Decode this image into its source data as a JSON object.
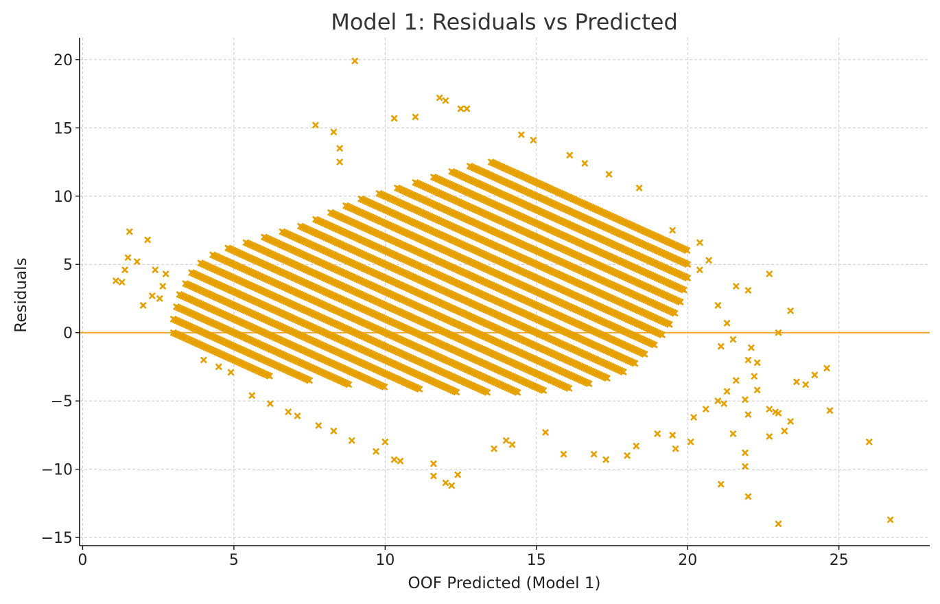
{
  "chart_data": {
    "type": "scatter",
    "title": "Model 1: Residuals vs Predicted",
    "xlabel": "OOF Predicted (Model 1)",
    "ylabel": "Residuals",
    "xlim": [
      -0.1,
      28.0
    ],
    "ylim": [
      -15.6,
      21.6
    ],
    "x_ticks": [
      0,
      5,
      10,
      15,
      20,
      25
    ],
    "x_tick_labels": [
      "0",
      "5",
      "10",
      "15",
      "20",
      "25"
    ],
    "y_ticks": [
      -15,
      -10,
      -5,
      0,
      5,
      10,
      15,
      20
    ],
    "y_tick_labels": [
      "−15",
      "−10",
      "−5",
      "0",
      "5",
      "10",
      "15",
      "20"
    ],
    "grid": true,
    "reference_line": {
      "y": 0
    },
    "marker": "x",
    "colors": {
      "points": "#E6A000",
      "reference_line": "#F0A020",
      "grid": "#c8c8c8",
      "axis": "#111111"
    },
    "bands": {
      "description": "points lie on diagonal bands of constant (predicted + residual), i.e. integer actual values",
      "actual_values": [
        3,
        4,
        5,
        6,
        7,
        8,
        9,
        10,
        11,
        12,
        13,
        14,
        15,
        16,
        17,
        18,
        19,
        20,
        21,
        22,
        23,
        24,
        25,
        26
      ],
      "band_x_ranges": [
        [
          3.0,
          6.2
        ],
        [
          3.0,
          7.5
        ],
        [
          3.1,
          8.8
        ],
        [
          3.2,
          10.0
        ],
        [
          3.4,
          11.2
        ],
        [
          3.6,
          12.4
        ],
        [
          3.9,
          13.4
        ],
        [
          4.3,
          14.4
        ],
        [
          4.8,
          15.3
        ],
        [
          5.4,
          16.1
        ],
        [
          6.0,
          16.8
        ],
        [
          6.6,
          17.4
        ],
        [
          7.2,
          17.9
        ],
        [
          7.7,
          18.3
        ],
        [
          8.2,
          18.6
        ],
        [
          8.7,
          18.9
        ],
        [
          9.2,
          19.2
        ],
        [
          9.8,
          19.4
        ],
        [
          10.4,
          19.6
        ],
        [
          11.0,
          19.8
        ],
        [
          11.6,
          19.9
        ],
        [
          12.2,
          20.0
        ],
        [
          12.8,
          20.0
        ],
        [
          13.5,
          20.0
        ]
      ]
    },
    "outliers": [
      {
        "x": 1.1,
        "y": 3.8
      },
      {
        "x": 1.3,
        "y": 3.7
      },
      {
        "x": 1.4,
        "y": 4.6
      },
      {
        "x": 1.5,
        "y": 5.5
      },
      {
        "x": 1.55,
        "y": 7.4
      },
      {
        "x": 1.8,
        "y": 5.2
      },
      {
        "x": 2.0,
        "y": 2.0
      },
      {
        "x": 2.15,
        "y": 6.8
      },
      {
        "x": 2.3,
        "y": 2.7
      },
      {
        "x": 2.4,
        "y": 4.6
      },
      {
        "x": 2.55,
        "y": 2.5
      },
      {
        "x": 2.65,
        "y": 3.4
      },
      {
        "x": 2.75,
        "y": 4.3
      },
      {
        "x": 9.0,
        "y": 19.9
      },
      {
        "x": 7.7,
        "y": 15.2
      },
      {
        "x": 8.3,
        "y": 14.7
      },
      {
        "x": 8.5,
        "y": 13.5
      },
      {
        "x": 8.5,
        "y": 12.5
      },
      {
        "x": 10.3,
        "y": 15.7
      },
      {
        "x": 11.0,
        "y": 15.8
      },
      {
        "x": 11.8,
        "y": 17.2
      },
      {
        "x": 12.0,
        "y": 17.0
      },
      {
        "x": 12.5,
        "y": 16.4
      },
      {
        "x": 12.7,
        "y": 16.4
      },
      {
        "x": 14.5,
        "y": 14.5
      },
      {
        "x": 14.9,
        "y": 14.1
      },
      {
        "x": 16.1,
        "y": 13.0
      },
      {
        "x": 16.6,
        "y": 12.4
      },
      {
        "x": 17.4,
        "y": 11.6
      },
      {
        "x": 18.4,
        "y": 10.6
      },
      {
        "x": 19.5,
        "y": 7.5
      },
      {
        "x": 20.4,
        "y": 6.6
      },
      {
        "x": 20.7,
        "y": 5.3
      },
      {
        "x": 20.4,
        "y": 4.6
      },
      {
        "x": 21.6,
        "y": 3.4
      },
      {
        "x": 22.0,
        "y": 3.1
      },
      {
        "x": 22.7,
        "y": 4.3
      },
      {
        "x": 23.4,
        "y": 1.6
      },
      {
        "x": 23.0,
        "y": 0.0
      },
      {
        "x": 21.0,
        "y": 2.0
      },
      {
        "x": 21.3,
        "y": 0.7
      },
      {
        "x": 21.5,
        "y": -0.5
      },
      {
        "x": 21.1,
        "y": -1.0
      },
      {
        "x": 22.1,
        "y": -1.1
      },
      {
        "x": 22.0,
        "y": -2.0
      },
      {
        "x": 22.3,
        "y": -2.2
      },
      {
        "x": 22.2,
        "y": -3.2
      },
      {
        "x": 22.3,
        "y": -4.2
      },
      {
        "x": 21.6,
        "y": -3.5
      },
      {
        "x": 21.9,
        "y": -4.9
      },
      {
        "x": 21.3,
        "y": -4.3
      },
      {
        "x": 21.0,
        "y": -5.0
      },
      {
        "x": 21.2,
        "y": -5.2
      },
      {
        "x": 21.5,
        "y": -7.4
      },
      {
        "x": 21.9,
        "y": -8.8
      },
      {
        "x": 21.9,
        "y": -9.8
      },
      {
        "x": 22.0,
        "y": -6.0
      },
      {
        "x": 22.7,
        "y": -5.6
      },
      {
        "x": 22.9,
        "y": -5.8
      },
      {
        "x": 23.0,
        "y": -5.9
      },
      {
        "x": 22.7,
        "y": -7.6
      },
      {
        "x": 23.2,
        "y": -7.2
      },
      {
        "x": 23.4,
        "y": -6.5
      },
      {
        "x": 23.6,
        "y": -3.6
      },
      {
        "x": 23.9,
        "y": -3.8
      },
      {
        "x": 24.2,
        "y": -3.1
      },
      {
        "x": 24.6,
        "y": -2.6
      },
      {
        "x": 24.7,
        "y": -5.7
      },
      {
        "x": 21.1,
        "y": -11.1
      },
      {
        "x": 22.0,
        "y": -12.0
      },
      {
        "x": 23.0,
        "y": -14.0
      },
      {
        "x": 26.0,
        "y": -8.0
      },
      {
        "x": 26.7,
        "y": -13.7
      },
      {
        "x": 4.0,
        "y": -2.0
      },
      {
        "x": 4.5,
        "y": -2.5
      },
      {
        "x": 4.9,
        "y": -2.9
      },
      {
        "x": 5.6,
        "y": -4.6
      },
      {
        "x": 6.2,
        "y": -5.2
      },
      {
        "x": 6.8,
        "y": -5.8
      },
      {
        "x": 7.1,
        "y": -6.1
      },
      {
        "x": 7.8,
        "y": -6.8
      },
      {
        "x": 8.3,
        "y": -7.2
      },
      {
        "x": 8.9,
        "y": -7.9
      },
      {
        "x": 9.7,
        "y": -8.7
      },
      {
        "x": 10.0,
        "y": -8.0
      },
      {
        "x": 10.3,
        "y": -9.3
      },
      {
        "x": 10.5,
        "y": -9.4
      },
      {
        "x": 11.6,
        "y": -10.5
      },
      {
        "x": 11.6,
        "y": -9.6
      },
      {
        "x": 12.0,
        "y": -11.0
      },
      {
        "x": 12.2,
        "y": -11.2
      },
      {
        "x": 12.4,
        "y": -10.4
      },
      {
        "x": 13.6,
        "y": -8.5
      },
      {
        "x": 14.0,
        "y": -7.9
      },
      {
        "x": 14.2,
        "y": -8.2
      },
      {
        "x": 15.3,
        "y": -7.3
      },
      {
        "x": 15.9,
        "y": -8.9
      },
      {
        "x": 16.9,
        "y": -8.9
      },
      {
        "x": 17.3,
        "y": -9.3
      },
      {
        "x": 18.0,
        "y": -9.0
      },
      {
        "x": 18.3,
        "y": -8.3
      },
      {
        "x": 19.0,
        "y": -7.4
      },
      {
        "x": 19.5,
        "y": -7.5
      },
      {
        "x": 19.6,
        "y": -8.5
      },
      {
        "x": 20.1,
        "y": -8.0
      },
      {
        "x": 20.2,
        "y": -6.2
      },
      {
        "x": 20.6,
        "y": -5.6
      }
    ]
  }
}
